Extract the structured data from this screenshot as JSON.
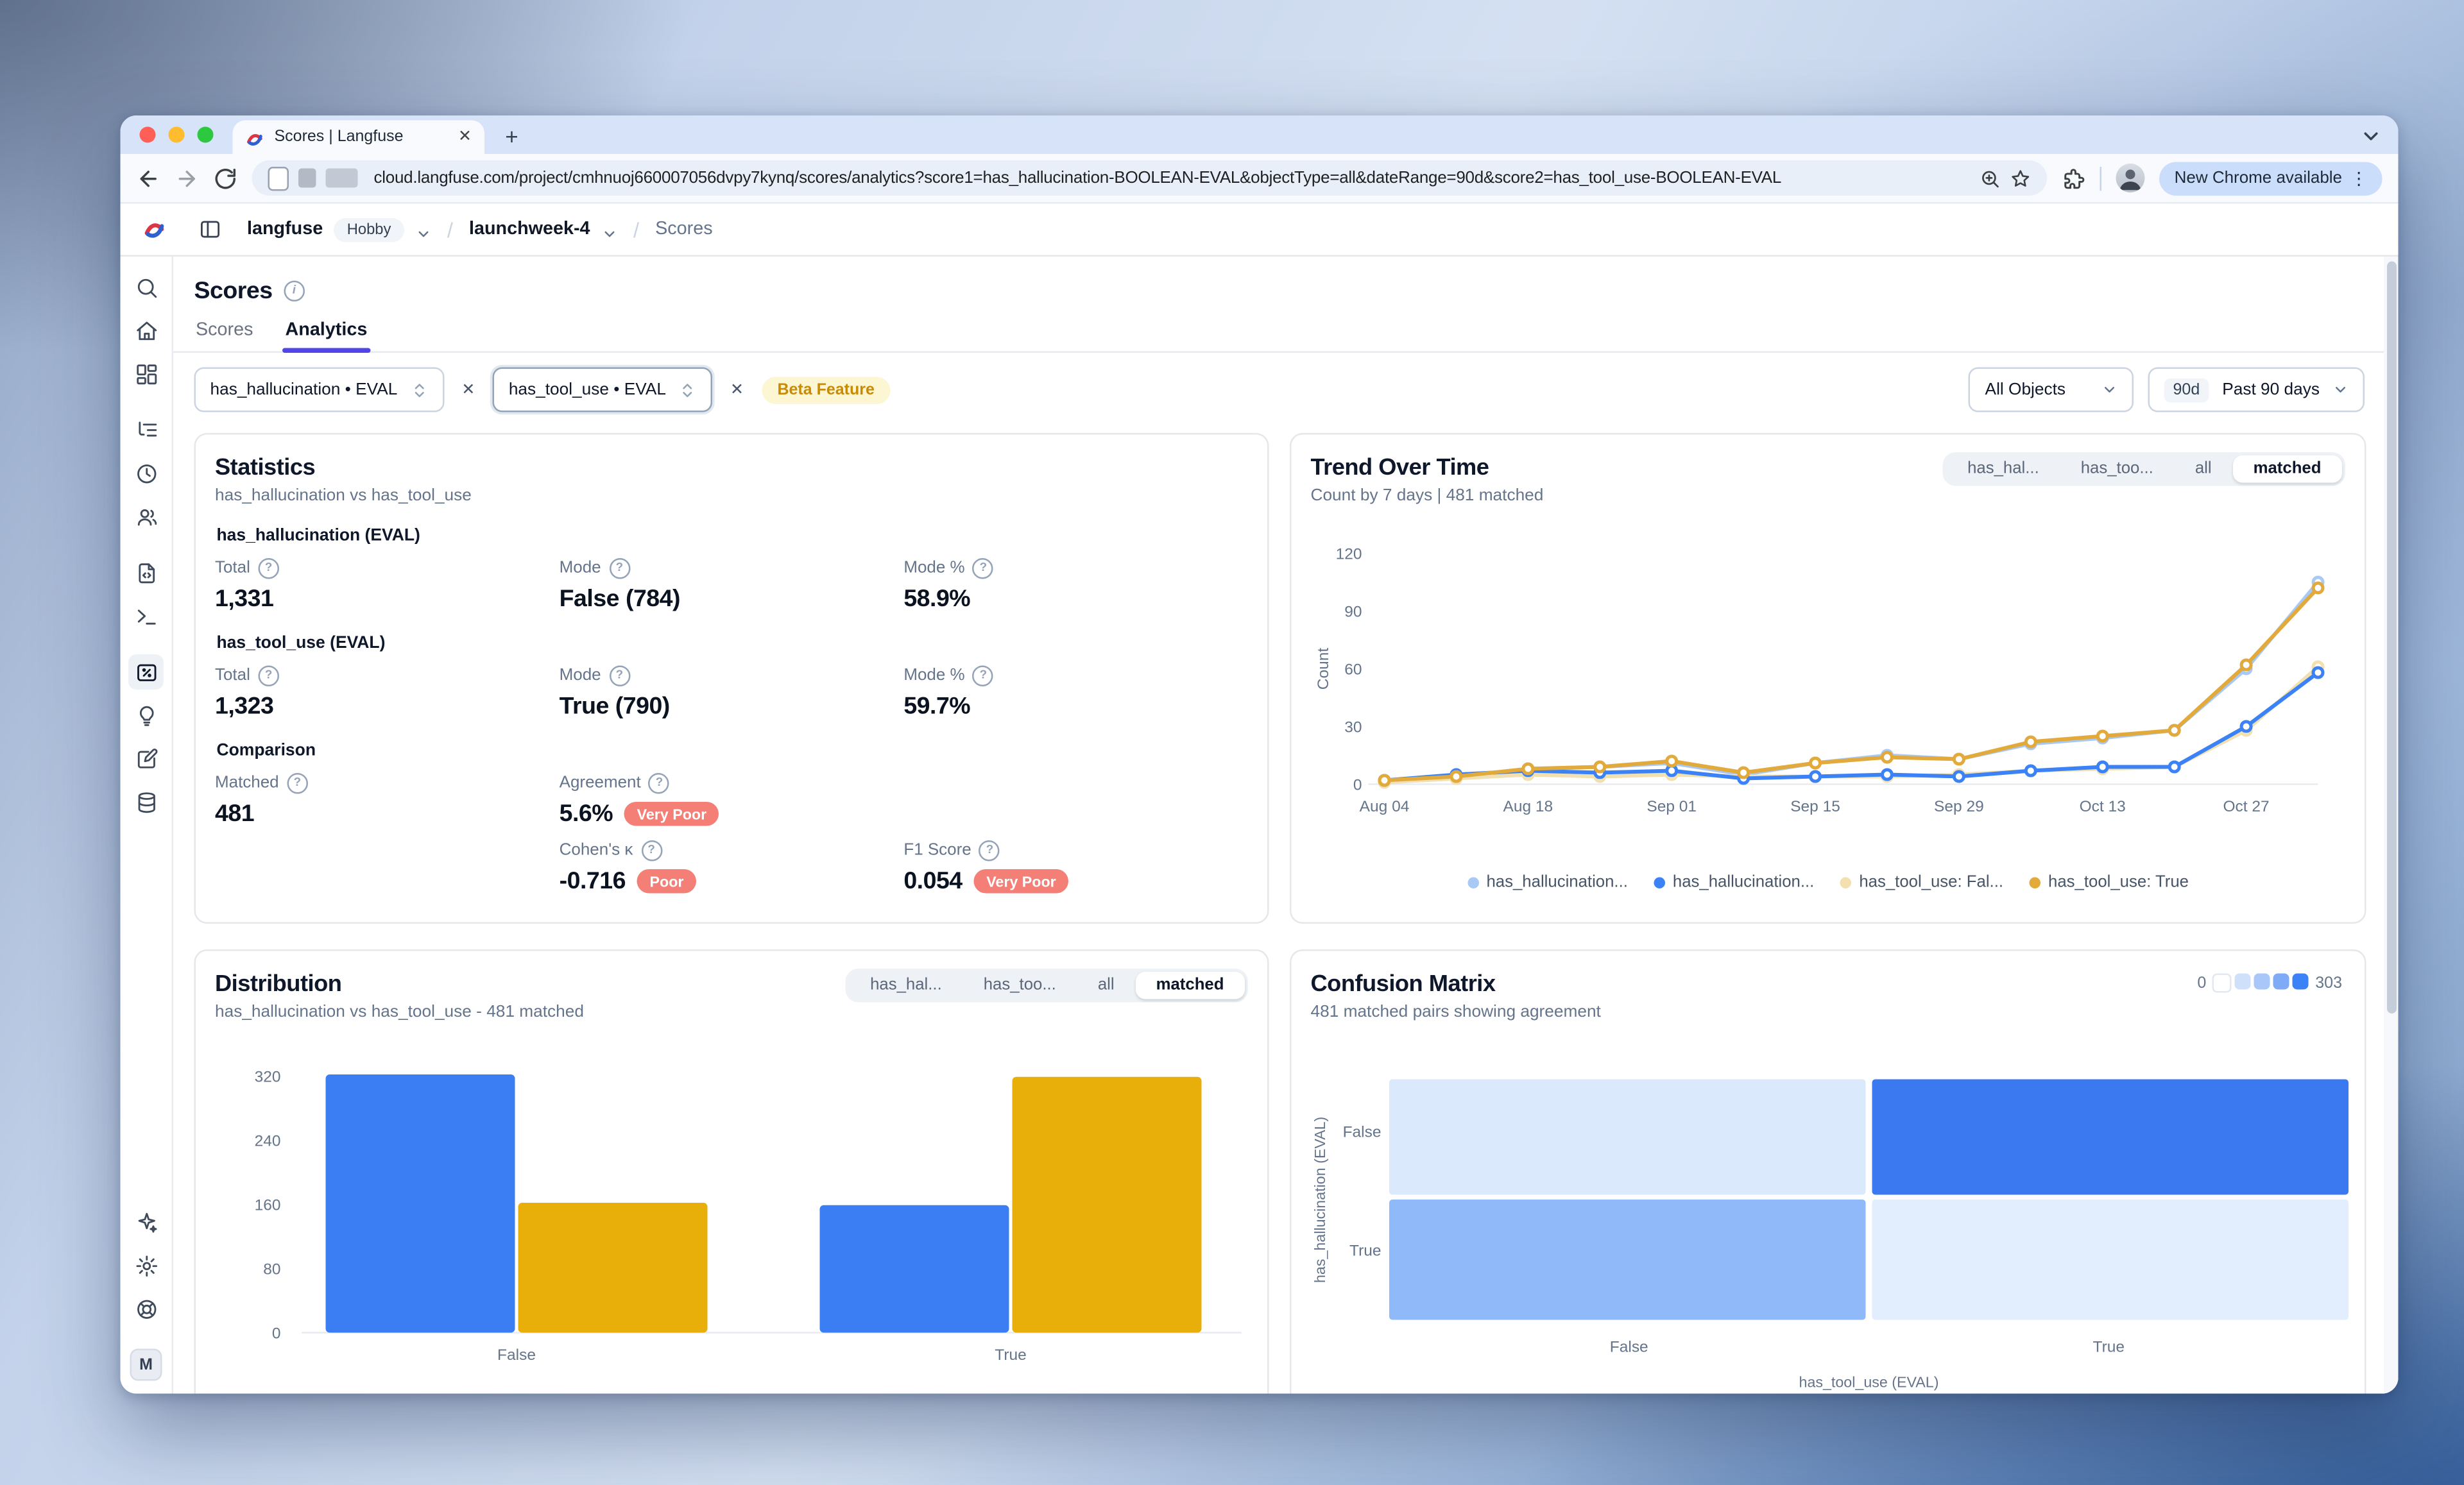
{
  "browser": {
    "tab_title": "Scores | Langfuse",
    "url": "cloud.langfuse.com/project/cmhnuoj660007056dvpy7kynq/scores/analytics?score1=has_hallucination-BOOLEAN-EVAL&objectType=all&dateRange=90d&score2=has_tool_use-BOOLEAN-EVAL",
    "new_chrome_label": "New Chrome available"
  },
  "app": {
    "header": {
      "org": "langfuse",
      "plan_badge": "Hobby",
      "project": "launchweek-4",
      "page": "Scores"
    },
    "page_title": "Scores",
    "tabs": [
      {
        "label": "Scores",
        "active": false
      },
      {
        "label": "Analytics",
        "active": true
      }
    ],
    "filters": {
      "score1": "has_hallucination • EVAL",
      "score2": "has_tool_use • EVAL",
      "beta_badge": "Beta Feature",
      "object_filter": "All Objects",
      "date_badge": "90d",
      "date_range": "Past 90 days"
    },
    "sidebar": {
      "top": [
        "search",
        "home",
        "dashboards",
        "tracing",
        "sessions",
        "users",
        "prompts",
        "playground",
        "scores",
        "evaluators",
        "annotation",
        "datasets"
      ],
      "groups_end": [
        "dashboards",
        "users",
        "playground"
      ],
      "active": "scores",
      "bottom": [
        "upgrade",
        "settings",
        "support"
      ],
      "avatar": "M"
    }
  },
  "statistics": {
    "title": "Statistics",
    "subtitle": "has_hallucination vs has_tool_use",
    "sections": [
      {
        "heading": "has_hallucination (EVAL)",
        "rows": [
          [
            {
              "label": "Total",
              "value": "1,331"
            },
            {
              "label": "Mode",
              "value": "False (784)"
            },
            {
              "label": "Mode %",
              "value": "58.9%"
            }
          ]
        ]
      },
      {
        "heading": "has_tool_use (EVAL)",
        "rows": [
          [
            {
              "label": "Total",
              "value": "1,323"
            },
            {
              "label": "Mode",
              "value": "True (790)"
            },
            {
              "label": "Mode %",
              "value": "59.7%"
            }
          ]
        ]
      },
      {
        "heading": "Comparison",
        "rows": [
          [
            {
              "label": "Matched",
              "value": "481"
            },
            {
              "label": "Agreement",
              "value": "5.6%",
              "badge": "Very Poor"
            },
            null
          ],
          [
            null,
            {
              "label": "Cohen's κ",
              "value": "-0.716",
              "badge": "Poor"
            },
            {
              "label": "F1 Score",
              "value": "0.054",
              "badge": "Very Poor"
            }
          ]
        ]
      }
    ]
  },
  "chart_data": [
    {
      "id": "trend",
      "type": "line",
      "title": "Trend Over Time",
      "subtitle": "Count by 7 days | 481 matched",
      "toggle": {
        "options": [
          "has_hal...",
          "has_too...",
          "all",
          "matched"
        ],
        "selected": "matched"
      },
      "ylabel": "Count",
      "ylim": [
        0,
        120
      ],
      "yticks": [
        0,
        30,
        60,
        90,
        120
      ],
      "x_tick_labels": [
        "Aug 04",
        "Aug 18",
        "Sep 01",
        "Sep 15",
        "Sep 29",
        "Oct 13",
        "Oct 27"
      ],
      "x_tick_positions": [
        0,
        2,
        4,
        6,
        8,
        10,
        12
      ],
      "series": [
        {
          "name": "has_hallucination: False",
          "color": "#a9c9f5",
          "values": [
            1,
            3,
            8,
            9,
            11,
            5,
            11,
            15,
            13,
            21,
            24,
            28,
            60,
            105
          ]
        },
        {
          "name": "has_tool_use: False",
          "color": "#f3e0b0",
          "values": [
            1,
            3,
            5,
            4,
            5,
            4,
            4,
            4,
            5,
            7,
            8,
            9,
            28,
            61
          ]
        },
        {
          "name": "has_hallucination: True",
          "color": "#3b82f6",
          "values": [
            2,
            5,
            7,
            6,
            7,
            3,
            4,
            5,
            4,
            7,
            9,
            9,
            30,
            58
          ]
        },
        {
          "name": "has_tool_use: True",
          "color": "#e2a93b",
          "values": [
            2,
            4,
            8,
            9,
            12,
            6,
            11,
            14,
            13,
            22,
            25,
            28,
            62,
            102
          ]
        }
      ],
      "legend": [
        {
          "label": "has_hallucination...",
          "color": "#a9c9f5"
        },
        {
          "label": "has_hallucination...",
          "color": "#3b82f6"
        },
        {
          "label": "has_tool_use: Fal...",
          "color": "#f3e0b0"
        },
        {
          "label": "has_tool_use: True",
          "color": "#e2a93b"
        }
      ],
      "legend_position": "bottom",
      "grid": false
    },
    {
      "id": "distribution",
      "type": "bar",
      "title": "Distribution",
      "subtitle": "has_hallucination vs has_tool_use - 481 matched",
      "toggle": {
        "options": [
          "has_hal...",
          "has_too...",
          "all",
          "matched"
        ],
        "selected": "matched"
      },
      "categories": [
        "False",
        "True"
      ],
      "yticks": [
        0,
        80,
        160,
        240,
        320
      ],
      "ylim": [
        0,
        340
      ],
      "series": [
        {
          "name": "has_hallucination",
          "color": "#3b7df2",
          "values": [
            322,
            159
          ]
        },
        {
          "name": "has_tool_use",
          "color": "#e8ae09",
          "values": [
            162,
            319
          ]
        }
      ],
      "legend_position": "bottom",
      "grid": false
    },
    {
      "id": "confusion",
      "type": "heatmap",
      "title": "Confusion Matrix",
      "subtitle": "481 matched pairs showing agreement",
      "xlabel": "has_tool_use (EVAL)",
      "ylabel": "has_hallucination (EVAL)",
      "x_categories": [
        "False",
        "True"
      ],
      "y_categories": [
        "False",
        "True"
      ],
      "cell_colors": [
        [
          "#dbe9fd",
          "#3b79f1"
        ],
        [
          "#8fb9f8",
          "#e2edfd"
        ]
      ],
      "legend_min": "0",
      "legend_max": "303",
      "legend_colors": [
        "#ffffff",
        "#cfe0fb",
        "#a9c7f9",
        "#7faaf5",
        "#3b82f6"
      ]
    }
  ]
}
